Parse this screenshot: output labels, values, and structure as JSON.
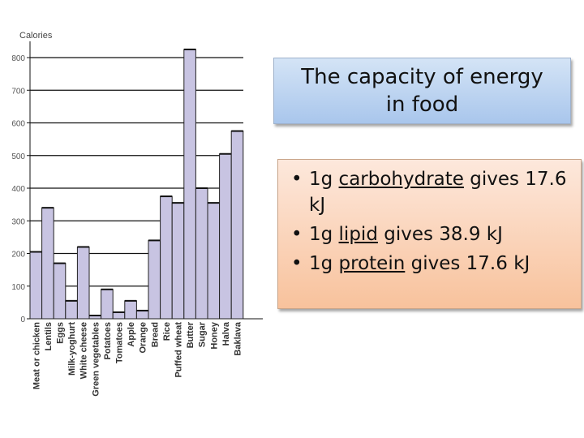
{
  "chart_data": {
    "type": "bar",
    "ylabel": "Calories",
    "categories": [
      "Meat or chicken",
      "Lentils",
      "Eggs",
      "Milk-yoghurt",
      "White cheese",
      "Green vegetables",
      "Potatoes",
      "Tomatoes",
      "Apple",
      "Orange",
      "Bread",
      "Rice",
      "Puffed wheat",
      "Butter",
      "Sugar",
      "Honey",
      "Halva",
      "Baklava"
    ],
    "values": [
      205,
      340,
      170,
      55,
      220,
      10,
      90,
      20,
      55,
      25,
      240,
      375,
      355,
      825,
      400,
      355,
      505,
      575
    ],
    "yticks": [
      0,
      100,
      200,
      300,
      400,
      500,
      600,
      700,
      800
    ],
    "ylim": [
      0,
      850
    ],
    "bar_color": "#c8c4e2",
    "grid": true
  },
  "title": {
    "line1": "The capacity of energy",
    "line2": "in food"
  },
  "bullets": [
    {
      "pre": "1g ",
      "term": "carbohydrate",
      "post": " gives 17.6 kJ"
    },
    {
      "pre": "1g ",
      "term": "lipid",
      "post": " gives 38.9 kJ"
    },
    {
      "pre": "1g ",
      "term": "protein",
      "post": " gives 17.6 kJ"
    }
  ],
  "bullet_symbol": "•"
}
